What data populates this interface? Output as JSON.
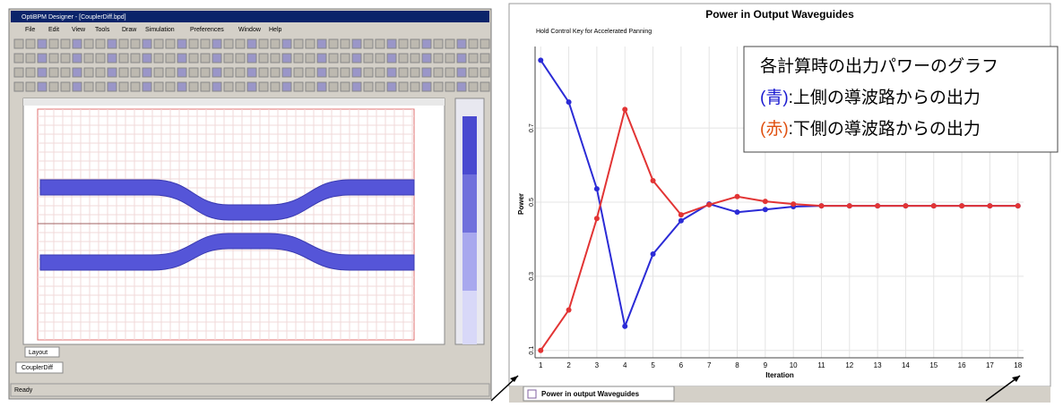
{
  "app": {
    "window_title": "OptiBPM Designer - [CouplerDiff.bpd]",
    "menu": [
      "File",
      "Edit",
      "View",
      "Tools",
      "Draw",
      "Simulation",
      "Preferences",
      "Window",
      "Help"
    ],
    "layout_tab": "Layout",
    "doc_tab": "CouplerDiff",
    "status": "Ready",
    "chart_tab": "Power in output Waveguides"
  },
  "chart_data": {
    "type": "line",
    "title": "Power in Output Waveguides",
    "subtitle": "Hold Control Key for Accelerated Panning",
    "x_label": "Iteration",
    "y_label": "Power",
    "x": [
      1,
      2,
      3,
      4,
      5,
      6,
      7,
      8,
      9,
      10,
      11,
      12,
      13,
      14,
      15,
      16,
      17,
      18
    ],
    "series": [
      {
        "color": "#2b2bd6",
        "values": [
          0.883,
          0.77,
          0.536,
          0.165,
          0.36,
          0.45,
          0.495,
          0.473,
          0.48,
          0.488,
          0.49,
          0.49,
          0.49,
          0.49,
          0.49,
          0.49,
          0.49,
          0.49
        ]
      },
      {
        "color": "#e23434",
        "values": [
          0.1,
          0.209,
          0.456,
          0.75,
          0.558,
          0.466,
          0.493,
          0.515,
          0.502,
          0.495,
          0.49,
          0.49,
          0.49,
          0.49,
          0.49,
          0.49,
          0.49,
          0.49
        ]
      }
    ],
    "xlim": [
      0.8,
      18.2
    ],
    "xticks": [
      1,
      2,
      3,
      4,
      5,
      6,
      7,
      8,
      9,
      10,
      11,
      12,
      13,
      14,
      15,
      16,
      17,
      18
    ],
    "ylim": [
      0.08,
      0.92
    ],
    "yticks": [
      0.1,
      0.3,
      0.5,
      0.7
    ],
    "grid": true,
    "annotations": {
      "heading": "各計算時の出力パワーのグラフ",
      "blue_marker": "(青)",
      "blue_text": ":上側の導波路からの出力",
      "red_marker": "(赤)",
      "red_text": ":下側の導波路からの出力"
    }
  }
}
